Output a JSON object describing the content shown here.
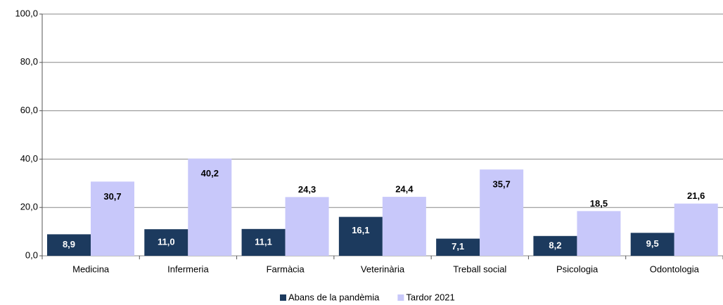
{
  "chart_data": {
    "type": "bar",
    "categories": [
      "Medicina",
      "Infermeria",
      "Farmàcia",
      "Veterinària",
      "Treball social",
      "Psicologia",
      "Odontologia"
    ],
    "series": [
      {
        "name": "Abans de la pandèmia",
        "color": "#1c3a5e",
        "values": [
          8.9,
          11.0,
          11.1,
          16.1,
          7.1,
          8.2,
          9.5
        ],
        "value_labels": [
          "8,9",
          "11,0",
          "11,1",
          "16,1",
          "7,1",
          "8,2",
          "9,5"
        ]
      },
      {
        "name": "Tardor 2021",
        "color": "#c8c8fa",
        "values": [
          30.7,
          40.2,
          24.3,
          24.4,
          35.7,
          18.5,
          21.6
        ],
        "value_labels": [
          "30,7",
          "40,2",
          "24,3",
          "24,4",
          "35,7",
          "18,5",
          "21,6"
        ]
      }
    ],
    "ylim": [
      0,
      100
    ],
    "yticks": [
      {
        "value": 0,
        "label": "0,0"
      },
      {
        "value": 20,
        "label": "20,0"
      },
      {
        "value": 40,
        "label": "40,0"
      },
      {
        "value": 60,
        "label": "60,0"
      },
      {
        "value": 80,
        "label": "80,0"
      },
      {
        "value": 100,
        "label": "100,0"
      }
    ],
    "grid": true,
    "legend": "bottom"
  }
}
